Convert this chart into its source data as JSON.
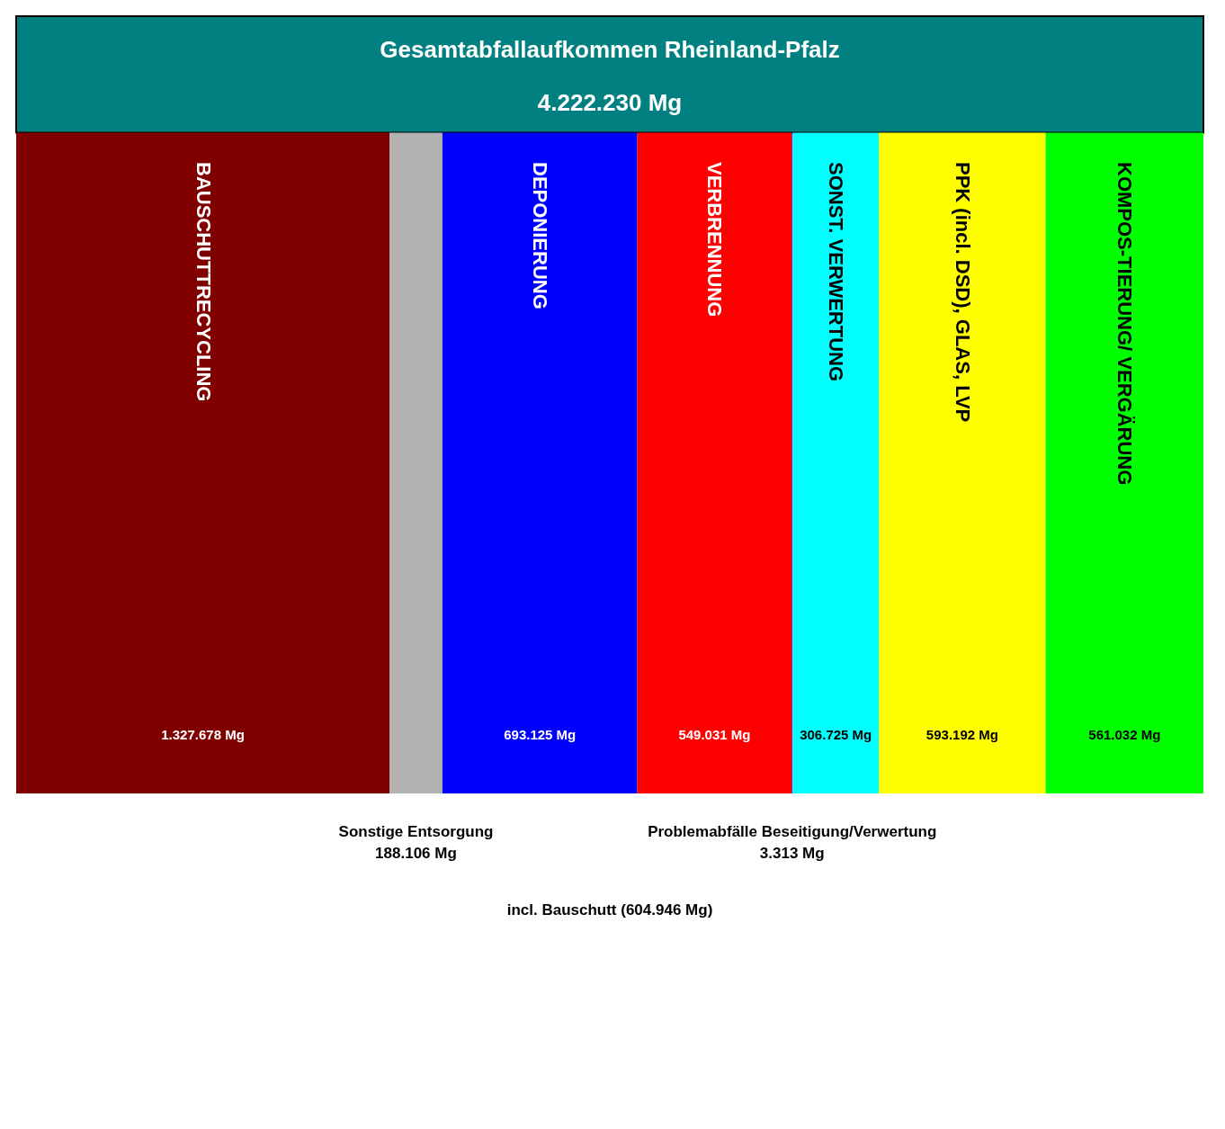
{
  "chart_data": {
    "type": "other",
    "title": "Gesamtabfallaufkommen Rheinland-Pfalz",
    "subtitle": "4.222.230 Mg",
    "categories": [
      "BAUSCHUTTRECYCLING",
      "Sonstige Entsorgung",
      "DEPONIERUNG",
      "VERBRENNUNG",
      "Problemabfälle Beseitigung/Verwertung",
      "SONST. VERWERTUNG",
      "PPK (incl. DSD), GLAS, LVP",
      "KOMPOS-TIERUNG/ VERGÄRUNG"
    ],
    "values": [
      1327678,
      188106,
      693125,
      549031,
      3313,
      306725,
      593192,
      561032
    ],
    "colors": [
      "#800000",
      "#b2b2b2",
      "#0000ff",
      "#ff0000",
      "#800080",
      "#00ffff",
      "#ffff00",
      "#00ff00"
    ],
    "value_labels": [
      "1.327.678 Mg",
      "188.106 Mg",
      "693.125 Mg",
      "549.031 Mg",
      "3.313 Mg",
      "306.725 Mg",
      "593.192 Mg",
      "561.032 Mg"
    ],
    "annotations": [
      "incl. Bauschutt (604.946 Mg)"
    ]
  }
}
